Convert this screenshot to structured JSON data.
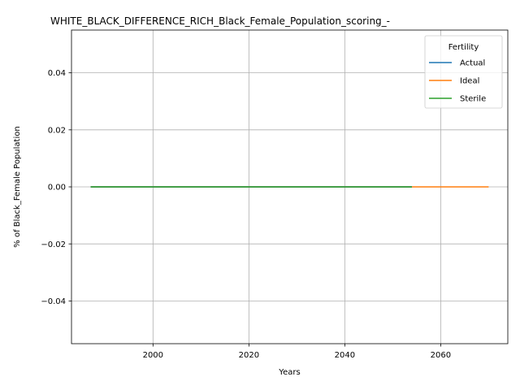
{
  "chart_data": {
    "type": "line",
    "title": "WHITE_BLACK_DIFFERENCE_RICH_Black_Female_Population_scoring_-",
    "xlabel": "Years",
    "ylabel": "% of Black_Female Population",
    "xlim": [
      1983,
      2074
    ],
    "ylim": [
      -0.055,
      0.055
    ],
    "x_ticks": [
      2000,
      2020,
      2040,
      2060
    ],
    "y_ticks": [
      -0.04,
      -0.02,
      0.0,
      0.02,
      0.04
    ],
    "y_tick_labels": [
      "−0.04",
      "−0.02",
      "0.00",
      "0.02",
      "0.04"
    ],
    "grid": true,
    "legend": {
      "title": "Fertility",
      "placement": "top-right"
    },
    "series": [
      {
        "name": "Actual",
        "color": "#1f77b4",
        "x": [
          1987,
          2054
        ],
        "y": [
          0,
          0
        ]
      },
      {
        "name": "Ideal",
        "color": "#ff7f0e",
        "x": [
          1987,
          2070
        ],
        "y": [
          0,
          0
        ]
      },
      {
        "name": "Sterile",
        "color": "#2ca02c",
        "x": [
          1987,
          2054
        ],
        "y": [
          0,
          0
        ]
      }
    ]
  }
}
